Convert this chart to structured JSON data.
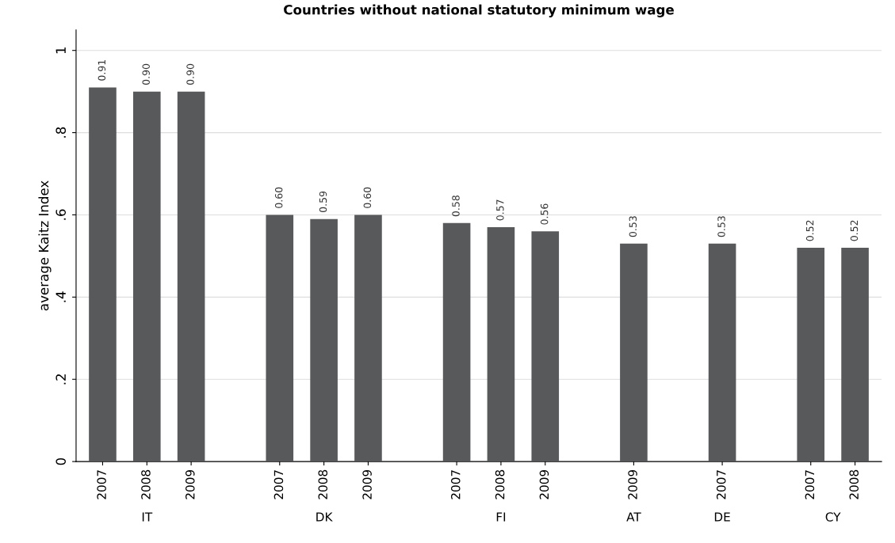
{
  "chart_data": {
    "type": "bar",
    "title": "Countries without national statutory minimum wage",
    "ylabel": "average Kaitz Index",
    "categories": [
      "2007",
      "2008",
      "2009",
      null,
      "2007",
      "2008",
      "2009",
      null,
      "2007",
      "2008",
      "2009",
      null,
      "2009",
      null,
      "2007",
      null,
      "2007",
      "2008"
    ],
    "values": [
      0.91,
      0.9,
      0.9,
      null,
      0.6,
      0.59,
      0.6,
      null,
      0.58,
      0.57,
      0.56,
      null,
      0.53,
      null,
      0.53,
      null,
      0.52,
      0.52
    ],
    "value_labels": [
      "0.91",
      "0.90",
      "0.90",
      null,
      "0.60",
      "0.59",
      "0.60",
      null,
      "0.58",
      "0.57",
      "0.56",
      null,
      "0.53",
      null,
      "0.53",
      null,
      "0.52",
      "0.52"
    ],
    "color": "#58595b",
    "annotations": [
      "IT",
      "DK",
      "FI",
      "AT",
      "DE",
      "CY"
    ],
    "ylim": [
      0,
      1.05
    ],
    "yticks": [
      {
        "value": 0,
        "label": "0"
      },
      {
        "value": 0.2,
        "label": ".2"
      },
      {
        "value": 0.4,
        "label": ".4"
      },
      {
        "value": 0.6,
        "label": ".6"
      },
      {
        "value": 0.8,
        "label": ".8"
      },
      {
        "value": 1,
        "label": "1"
      }
    ],
    "grid": "y"
  }
}
